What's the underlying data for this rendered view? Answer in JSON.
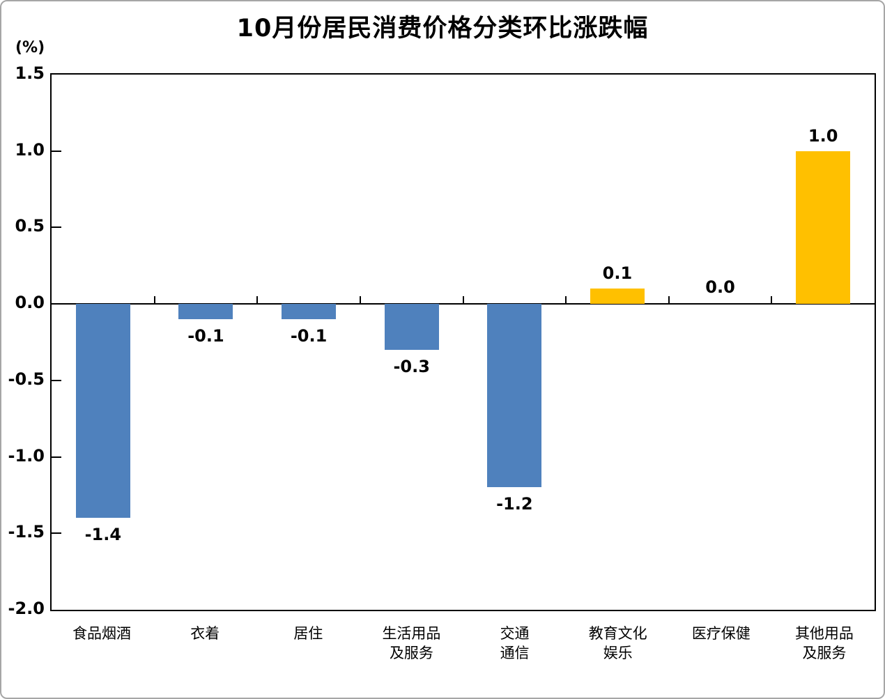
{
  "title": {
    "prefix": "10",
    "text": "月份居民消费价格分类环比涨跌幅"
  },
  "unit_label": "(%)",
  "chart_data": {
    "type": "bar",
    "title": "10月份居民消费价格分类环比涨跌幅",
    "ylabel": "(%)",
    "categories": [
      "食品烟酒",
      "衣着",
      "居住",
      "生活用品\n及服务",
      "交通\n通信",
      "教育文化\n娱乐",
      "医疗保健",
      "其他用品\n及服务"
    ],
    "values": [
      -1.4,
      -0.1,
      -0.1,
      -0.3,
      -1.2,
      0.1,
      0.0,
      1.0
    ],
    "value_labels": [
      "-1.4",
      "-0.1",
      "-0.1",
      "-0.3",
      "-1.2",
      "0.1",
      "0.0",
      "1.0"
    ],
    "ylim": [
      -2.0,
      1.5
    ],
    "ytick_step": 0.5,
    "ytick_labels": [
      "1.5",
      "1.0",
      "0.5",
      "0.0",
      "-0.5",
      "-1.0",
      "-1.5",
      "-2.0"
    ],
    "grid": false,
    "legend": null,
    "colors": {
      "positive_bar": "#FFC000",
      "negative_bar": "#4F81BD",
      "axis": "#000000"
    }
  }
}
